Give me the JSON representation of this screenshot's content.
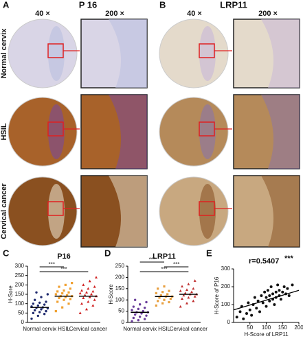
{
  "panel_a": {
    "letter": "A",
    "title": "P 16",
    "low_mag": "40 ×",
    "high_mag": "200 ×"
  },
  "panel_b": {
    "letter": "B",
    "title": "LRP11",
    "low_mag": "40 ×",
    "high_mag": "200 ×"
  },
  "rows": [
    "Normal cervix",
    "HSIL",
    "Cervical cancer"
  ],
  "chart_data": [
    {
      "type": "strip",
      "letter": "C",
      "title": "P16",
      "ylabel": "H-Sore",
      "categories": [
        "Normal cervix",
        "HSIL",
        "Cervical cancer"
      ],
      "colors": [
        "#1f2a6e",
        "#f0a030",
        "#d02020"
      ],
      "markers": [
        "circle",
        "square",
        "triangle"
      ],
      "values": [
        [
          20,
          35,
          45,
          50,
          55,
          60,
          65,
          70,
          75,
          78,
          80,
          85,
          90,
          95,
          100,
          105,
          110,
          120,
          135,
          150,
          160
        ],
        [
          60,
          80,
          100,
          110,
          120,
          125,
          130,
          135,
          140,
          140,
          145,
          150,
          155,
          160,
          165,
          170,
          180,
          190,
          200,
          210
        ],
        [
          50,
          70,
          90,
          100,
          110,
          120,
          130,
          135,
          140,
          145,
          150,
          155,
          160,
          165,
          170,
          180,
          190,
          200,
          220,
          240
        ]
      ],
      "means": [
        80,
        140,
        140
      ],
      "brackets": [
        {
          "label": "***",
          "pair": [
            "Normal cervix",
            "HSIL"
          ]
        },
        {
          "label": "***",
          "pair": [
            "Normal cervix",
            "Cervical cancer"
          ]
        }
      ],
      "ylim": [
        0,
        300
      ],
      "yticks": [
        0,
        50,
        100,
        150,
        200,
        250,
        300
      ]
    },
    {
      "type": "strip",
      "letter": "D",
      "title": "LRP11",
      "ylabel": "H-Score",
      "categories": [
        "Normal cervix",
        "HSIL",
        "Cervical cancer"
      ],
      "colors": [
        "#6a3d9a",
        "#e8a040",
        "#c03030"
      ],
      "markers": [
        "circle",
        "square",
        "triangle"
      ],
      "values": [
        [
          5,
          10,
          15,
          20,
          25,
          30,
          35,
          40,
          45,
          45,
          50,
          55,
          60,
          65,
          70,
          80,
          90,
          100
        ],
        [
          75,
          85,
          90,
          95,
          100,
          105,
          110,
          115,
          115,
          120,
          125,
          130,
          135,
          140,
          150,
          160
        ],
        [
          70,
          85,
          95,
          105,
          110,
          115,
          120,
          125,
          125,
          130,
          135,
          140,
          145,
          150,
          160,
          170,
          185
        ]
      ],
      "means": [
        45,
        115,
        125
      ],
      "brackets": [
        {
          "label": "***",
          "pair": [
            "Normal cervix",
            "HSIL"
          ]
        },
        {
          "label": "***",
          "pair": [
            "HSIL",
            "Cervical cancer"
          ]
        },
        {
          "label": "***",
          "pair": [
            "Normal cervix",
            "Cervical cancer"
          ]
        }
      ],
      "ylim": [
        0,
        250
      ],
      "yticks": [
        0,
        50,
        100,
        150,
        200,
        250
      ]
    },
    {
      "type": "scatter",
      "letter": "E",
      "annotation": "r=0.5407",
      "significance": "***",
      "xlabel": "H-Score of LRP11",
      "ylabel": "H-Score of P16",
      "color": "#111111",
      "x": [
        10,
        20,
        25,
        30,
        40,
        45,
        50,
        55,
        60,
        65,
        70,
        75,
        80,
        85,
        90,
        95,
        100,
        100,
        105,
        110,
        110,
        115,
        120,
        120,
        125,
        130,
        130,
        135,
        140,
        140,
        145,
        150,
        155,
        160,
        165,
        170,
        180
      ],
      "y": [
        30,
        60,
        90,
        20,
        50,
        110,
        70,
        40,
        100,
        140,
        80,
        120,
        60,
        150,
        110,
        170,
        90,
        140,
        180,
        120,
        150,
        200,
        130,
        160,
        100,
        170,
        140,
        210,
        150,
        180,
        130,
        170,
        200,
        160,
        190,
        150,
        210
      ],
      "fit": {
        "x": [
          0,
          200
        ],
        "y": [
          70,
          180
        ]
      },
      "xlim": [
        0,
        200
      ],
      "xticks": [
        50,
        100,
        150,
        200
      ],
      "ylim": [
        0,
        300
      ],
      "yticks": [
        0,
        100,
        200,
        300
      ]
    }
  ]
}
